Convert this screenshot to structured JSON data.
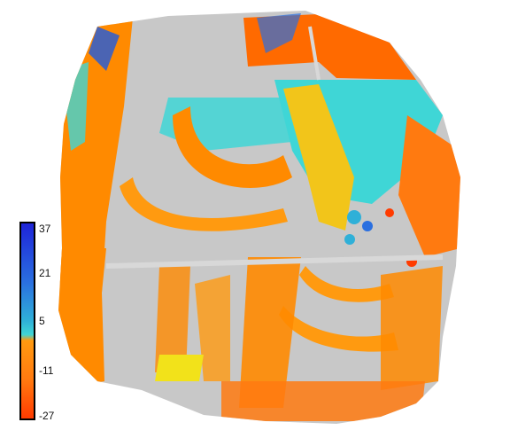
{
  "legend": {
    "ticks": [
      "37",
      "21",
      "5",
      "-11",
      "-27"
    ],
    "colors": {
      "high": "#1e24d8",
      "mid_high": "#2fb0d8",
      "cyan": "#3fd6d6",
      "yellow": "#f2e21a",
      "orange": "#ff8a00",
      "low": "#ff3b00",
      "nodata_gray": "#c8c8c8"
    }
  }
}
